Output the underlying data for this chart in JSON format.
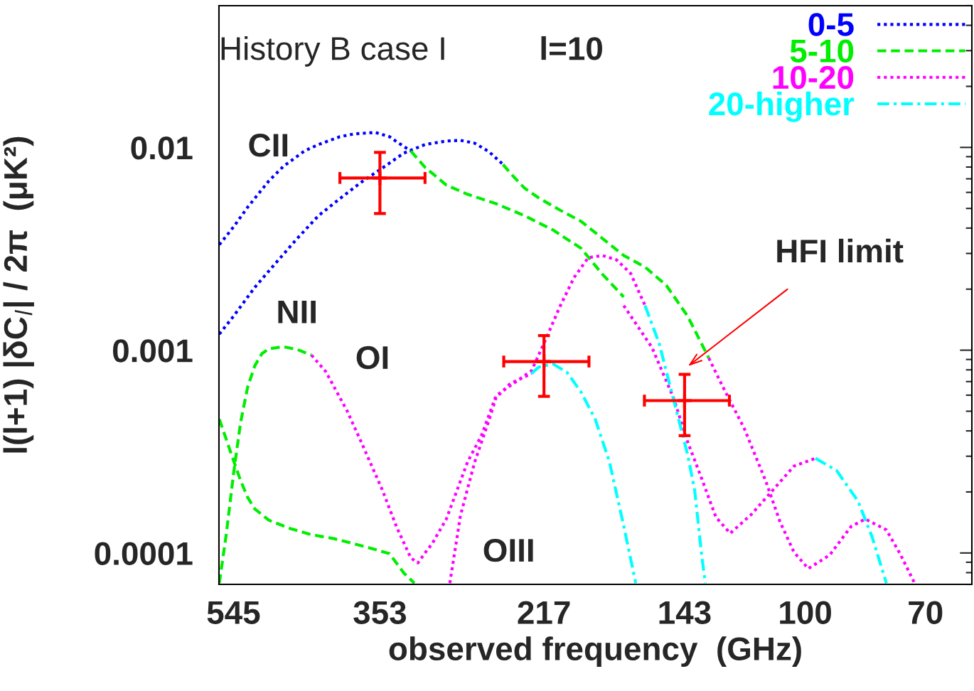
{
  "chart_data": {
    "type": "line",
    "xlabel": "observed frequency  (GHz)",
    "ylabel": "l(l+1) |δC$_{l}$| / 2π  (μK²)",
    "log": "xy",
    "xlim": [
      569,
      61
    ],
    "ylim": [
      7e-05,
      0.05
    ],
    "xticks": [
      545,
      353,
      217,
      143,
      100,
      70
    ],
    "yticks": [
      0.0001,
      0.001,
      0.01
    ],
    "grid": false,
    "legend": "top right",
    "series": [
      {
        "name": "0-5",
        "color": "#0000ff",
        "line_style": "dotted",
        "x": [
          568.4,
          545,
          522.6,
          490.6,
          470.4,
          441.6,
          423.4,
          397.5,
          381.1,
          357.8,
          343.1,
          335.9,
          322.1,
          null,
          568.4,
          545,
          511.7,
          480.4,
          451.0,
          423.4,
          397.5,
          373.2,
          350.4,
          328.9,
          308.8,
          289.9,
          278.0,
          266.5,
          255.5,
          245.0
        ],
        "values": [
          0.00331,
          0.00405,
          0.00507,
          0.00684,
          0.00804,
          0.0096,
          0.01033,
          0.01129,
          0.01166,
          0.01185,
          0.01129,
          0.01067,
          0.0096,
          null,
          0.0012,
          0.00147,
          0.00204,
          0.0027,
          0.00356,
          0.00461,
          0.00559,
          0.00673,
          0.00791,
          0.00937,
          0.01033,
          0.01075,
          0.01084,
          0.01049,
          0.00953,
          0.00824
        ]
      },
      {
        "name": "5-10",
        "color": "#00ee00",
        "line_style": "dashed",
        "x": [
          322.1,
          308.8,
          289.9,
          272.2,
          250.2,
          230.0,
          211.4,
          194.4,
          182.5,
          171.3,
          null,
          245.0,
          239.9,
          230.0,
          220.5,
          207.0,
          194.4,
          182.5,
          171.3,
          160.8,
          151.0,
          141.7,
          133.1,
          null,
          568.4,
          556.6,
          545,
          533.7,
          522.6,
          511.7,
          501.0,
          490.6,
          470.4,
          451.0,
          432.4,
          null,
          568.4,
          545,
          533.7,
          522.6,
          511.7,
          490.6,
          460.6,
          432.4,
          406.0,
          381.1,
          357.8,
          343.1,
          328.9,
          318.7
        ],
        "values": [
          0.0096,
          0.00798,
          0.00652,
          0.00587,
          0.00528,
          0.00461,
          0.00392,
          0.00318,
          0.00237,
          0.00183,
          null,
          0.00824,
          0.00748,
          0.00631,
          0.00564,
          0.00491,
          0.00432,
          0.00356,
          0.00293,
          0.00257,
          0.00209,
          0.00147,
          0.000915,
          null,
          7.1e-05,
          0.000125,
          0.000245,
          0.000439,
          0.000657,
          0.000837,
          0.000961,
          0.001016,
          0.001041,
          0.001008,
          0.000945,
          null,
          0.000457,
          0.000286,
          0.000228,
          0.000188,
          0.000165,
          0.000145,
          0.000132,
          0.000123,
          0.000118,
          0.000111,
          0.000104,
          9.92e-05,
          7.97e-05,
          7.1e-05
        ]
      },
      {
        "name": "10-20",
        "color": "#ff00ff",
        "line_style": "dotted",
        "x": [
          432.4,
          414.6,
          389.2,
          373.2,
          350.4,
          335.9,
          322.1,
          315.4,
          308.8,
          302.4,
          289.9,
          272.2,
          261.0,
          250.2,
          239.9,
          225.2,
          215.9,
          207.0,
          198.5,
          190.3,
          182.5,
          175.0,
          167.8,
          160.8,
          null,
          286.9,
          278.0,
          266.5,
          255.5,
          250.2,
          239.9,
          225.2,
          null,
          171.3,
          157.5,
          147.8,
          141.7,
          135.9,
          130.3,
          124.9,
          117.3,
          110.1,
          103.4,
          97.0,
          null,
          133.1,
          127.6,
          119.8,
          112.4,
          107.8,
          103.4,
          99.1,
          93.0,
          87.3,
          83.7,
          78.6,
          75.4,
          72.3
        ],
        "values": [
          0.000945,
          0.000785,
          0.000503,
          0.000353,
          0.000204,
          0.000134,
          9.45e-05,
          8.93e-05,
          0.0001,
          0.000111,
          0.000147,
          0.000281,
          0.000382,
          0.000596,
          0.000668,
          0.000791,
          0.00113,
          0.00164,
          0.00228,
          0.00286,
          0.00293,
          0.00279,
          0.00239,
          0.00166,
          null,
          7.1e-05,
          0.000153,
          0.000281,
          0.00045,
          0.000582,
          0.000684,
          0.000766,
          null,
          0.00166,
          0.00103,
          0.000582,
          0.000353,
          0.000232,
          0.00015,
          0.000125,
          0.000155,
          0.000204,
          0.000268,
          0.000293,
          null,
          0.000915,
          0.000657,
          0.000411,
          0.000226,
          0.000143,
          0.000101,
          8.37e-05,
          9.76e-05,
          0.000135,
          0.000147,
          0.00013,
          9.84e-05,
          7.1e-05
        ]
      },
      {
        "name": "20-higher",
        "color": "#00ffff",
        "line_style": "dashdot",
        "x": [
          225.2,
          220.5,
          211.4,
          202.7,
          194.4,
          186.4,
          178.7,
          171.3,
          165.3,
          null,
          160.8,
          154.2,
          147.8,
          141.7,
          138.8,
          135.9,
          134.5,
          null,
          97.0,
          91.1,
          85.5,
          82.0,
          78.6
        ],
        "values": [
          0.000766,
          0.000824,
          0.000857,
          0.000778,
          0.000621,
          0.000457,
          0.000281,
          0.000136,
          7.1e-05,
          null,
          0.00166,
          0.00108,
          0.000573,
          0.000305,
          0.000204,
          9.67e-05,
          7.1e-05,
          null,
          0.000293,
          0.000255,
          0.00018,
          0.00012,
          7.1e-05
        ]
      },
      {
        "type": "scatter",
        "marker": "cross",
        "color": "#ff0000",
        "x": [
          353,
          217,
          143
        ],
        "values": [
          0.00707,
          0.000879,
          0.000564
        ],
        "errors": [
          [
            0.00472,
            0.00945
          ],
          [
            0.000592,
            0.00118
          ],
          [
            0.000379,
            0.00076
          ]
        ],
        "xerrors": [
          [
            308.8,
            397.5
          ],
          [
            189.9,
            244.5
          ],
          [
            125.2,
            161.1
          ]
        ]
      }
    ],
    "annotations": [
      "History B case I",
      "l=10",
      "CII",
      "NII",
      "OI",
      "OIII",
      "HFI limit"
    ]
  }
}
